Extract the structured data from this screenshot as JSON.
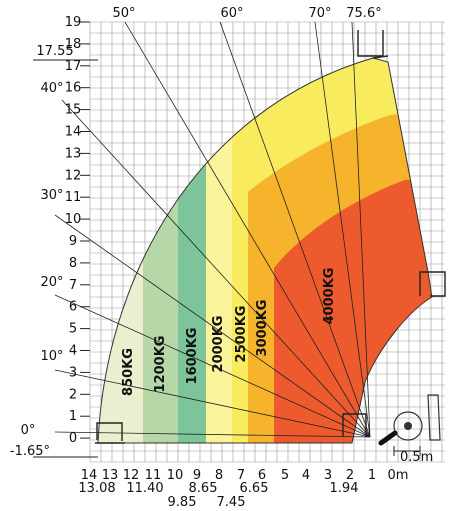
{
  "chart_data": {
    "type": "load-chart",
    "x_ticks": [
      "14",
      "13",
      "12",
      "11",
      "10",
      "9",
      "8",
      "7",
      "6",
      "5",
      "4",
      "3",
      "2",
      "1",
      "0m"
    ],
    "x_sub_labels": [
      "13.08",
      "11.40",
      "9.85",
      "8.65",
      "7.45",
      "6.65",
      "1.94"
    ],
    "y_ticks": [
      "19",
      "18",
      "17",
      "16",
      "15",
      "14",
      "13",
      "12",
      "11",
      "10",
      "9",
      "8",
      "7",
      "6",
      "5",
      "4",
      "3",
      "2",
      "1",
      "0",
      "-1.65°"
    ],
    "y_extra": "17.55",
    "angles": [
      "0°",
      "10°",
      "20°",
      "30°",
      "40°",
      "50°",
      "60°",
      "70°",
      "75.6°"
    ],
    "zones": [
      {
        "label": "850KG",
        "color": "#e9efcf"
      },
      {
        "label": "1200KG",
        "color": "#b6d7a8"
      },
      {
        "label": "1600KG",
        "color": "#7ec49a"
      },
      {
        "label": "2000KG",
        "color": "#faf59a"
      },
      {
        "label": "2500KG",
        "color": "#f8ec5e"
      },
      {
        "label": "3000KG",
        "color": "#f6b42c"
      },
      {
        "label": "4000KG",
        "color": "#ec5a2e"
      }
    ],
    "scale_label": "0.5m"
  }
}
